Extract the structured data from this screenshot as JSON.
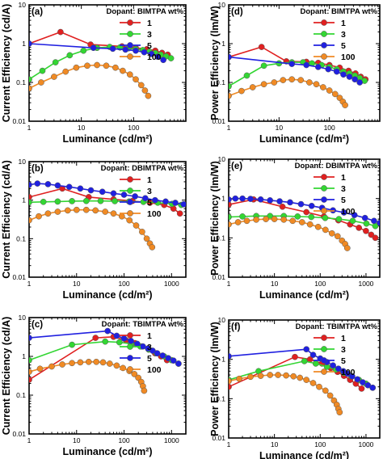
{
  "chart_data": [
    {
      "type": "line",
      "panel": "(a)",
      "legend_title": "Dopant: BIMTPA wt%",
      "xlabel": "Luminance (cd/m²)",
      "ylabel": "Current Efficiency (cd/A)",
      "x_scale": "log",
      "y_scale": "log",
      "xlim": [
        1,
        1000
      ],
      "ylim": [
        0.01,
        10
      ],
      "x_ticks": [
        "1",
        "10",
        "100"
      ],
      "y_ticks": [
        "0.01",
        "0.1",
        "1",
        "10"
      ],
      "legend_position": "top-right",
      "series": [
        {
          "name": "1",
          "color": "#e02020",
          "x": [
            1,
            4,
            15,
            60,
            110,
            180,
            260,
            350,
            450
          ],
          "y": [
            1.0,
            2.0,
            0.95,
            0.85,
            0.78,
            0.72,
            0.66,
            0.58,
            0.52
          ]
        },
        {
          "name": "3",
          "color": "#33d633",
          "x": [
            1,
            1.8,
            3.2,
            6,
            11,
            20,
            35,
            55,
            80,
            110,
            150,
            200,
            260,
            330,
            420,
            520
          ],
          "y": [
            0.12,
            0.2,
            0.33,
            0.5,
            0.66,
            0.78,
            0.82,
            0.8,
            0.76,
            0.72,
            0.68,
            0.62,
            0.57,
            0.52,
            0.47,
            0.42
          ]
        },
        {
          "name": "5",
          "color": "#2020e0",
          "x": [
            1,
            17,
            40,
            70,
            110,
            160,
            220,
            290,
            370
          ],
          "y": [
            1.0,
            0.78,
            0.74,
            0.7,
            0.66,
            0.6,
            0.54,
            0.46,
            0.38
          ]
        },
        {
          "name": "100",
          "color": "#f08a24",
          "x": [
            1,
            1.7,
            3,
            5,
            8,
            13,
            20,
            30,
            45,
            62,
            85,
            110,
            140,
            165,
            190
          ],
          "y": [
            0.07,
            0.1,
            0.14,
            0.19,
            0.24,
            0.27,
            0.28,
            0.27,
            0.24,
            0.2,
            0.16,
            0.12,
            0.085,
            0.062,
            0.045
          ]
        }
      ]
    },
    {
      "type": "line",
      "panel": "(b)",
      "legend_title": "Dopant: DBIMTPA wt%",
      "xlabel": "Luminance (cd/m²)",
      "ylabel": "Current Efficiency (cd/A)",
      "x_scale": "log",
      "y_scale": "log",
      "xlim": [
        1,
        2000
      ],
      "ylim": [
        0.01,
        10
      ],
      "x_ticks": [
        "1",
        "10",
        "100",
        "1000"
      ],
      "y_ticks": [
        "0.01",
        "0.1",
        "1",
        "10"
      ],
      "legend_position": "top-right",
      "series": [
        {
          "name": "1",
          "color": "#e02020",
          "x": [
            1,
            5,
            18,
            60,
            150,
            350,
            700,
            1100,
            1500
          ],
          "y": [
            1.2,
            2.0,
            1.2,
            1.05,
            0.95,
            0.85,
            0.75,
            0.6,
            0.45
          ]
        },
        {
          "name": "3",
          "color": "#33d633",
          "x": [
            1,
            2,
            4,
            8,
            16,
            32,
            64,
            128,
            256,
            512,
            1024,
            1600
          ],
          "y": [
            0.88,
            0.9,
            0.92,
            0.94,
            0.95,
            0.95,
            0.94,
            0.92,
            0.9,
            0.86,
            0.8,
            0.75
          ]
        },
        {
          "name": "5",
          "color": "#2020e0",
          "x": [
            1,
            1.5,
            2.5,
            4,
            7,
            12,
            20,
            35,
            60,
            100,
            170,
            280,
            450,
            750,
            1200,
            1800
          ],
          "y": [
            2.5,
            2.7,
            2.6,
            2.4,
            2.2,
            2.0,
            1.8,
            1.65,
            1.5,
            1.38,
            1.25,
            1.12,
            1.0,
            0.92,
            0.85,
            0.78
          ]
        },
        {
          "name": "100",
          "color": "#f08a24",
          "x": [
            1,
            1.6,
            2.5,
            4,
            6.5,
            10,
            16,
            25,
            40,
            60,
            90,
            130,
            180,
            240,
            300,
            350,
            390
          ],
          "y": [
            0.3,
            0.38,
            0.45,
            0.5,
            0.54,
            0.56,
            0.56,
            0.54,
            0.5,
            0.45,
            0.38,
            0.3,
            0.22,
            0.15,
            0.1,
            0.075,
            0.06
          ]
        }
      ]
    },
    {
      "type": "line",
      "panel": "(c)",
      "legend_title": "Dopant: TBIMTPA wt%",
      "xlabel": "Luminance (cd/m²)",
      "ylabel": "Current Efficiency (cd/A)",
      "x_scale": "log",
      "y_scale": "log",
      "xlim": [
        1,
        2000
      ],
      "ylim": [
        0.01,
        10
      ],
      "x_ticks": [
        "1",
        "10",
        "100",
        "1000"
      ],
      "y_ticks": [
        "0.01",
        "0.1",
        "1",
        "10"
      ],
      "legend_position": "top-right",
      "series": [
        {
          "name": "1",
          "color": "#e02020",
          "x": [
            1,
            25,
            60,
            110,
            170,
            240,
            330,
            450,
            600,
            800
          ],
          "y": [
            0.25,
            3.0,
            3.2,
            2.6,
            2.2,
            1.8,
            1.5,
            1.2,
            1.0,
            0.8
          ]
        },
        {
          "name": "3",
          "color": "#33d633",
          "x": [
            1,
            8,
            40,
            80,
            140,
            220,
            330,
            480,
            700,
            1000,
            1400
          ],
          "y": [
            0.8,
            2.0,
            2.4,
            2.3,
            2.1,
            1.8,
            1.5,
            1.2,
            1.0,
            0.8,
            0.65
          ]
        },
        {
          "name": "5",
          "color": "#2020e0",
          "x": [
            1,
            45,
            70,
            100,
            140,
            190,
            250,
            320,
            400,
            500,
            650,
            850,
            1100,
            1400
          ],
          "y": [
            3.0,
            4.5,
            3.4,
            2.9,
            2.5,
            2.1,
            1.8,
            1.6,
            1.4,
            1.2,
            1.05,
            0.9,
            0.78,
            0.65
          ]
        },
        {
          "name": "100",
          "color": "#f08a24",
          "x": [
            1,
            1.7,
            3,
            5,
            8,
            12,
            18,
            26,
            36,
            50,
            70,
            95,
            130,
            165,
            200,
            230,
            250,
            265
          ],
          "y": [
            0.4,
            0.48,
            0.55,
            0.62,
            0.67,
            0.7,
            0.72,
            0.72,
            0.7,
            0.65,
            0.58,
            0.5,
            0.42,
            0.35,
            0.28,
            0.22,
            0.17,
            0.13
          ]
        }
      ]
    },
    {
      "type": "line",
      "panel": "(d)",
      "legend_title": "Dopant: BIMTPA wt%",
      "xlabel": "Luminance (cd/m²)",
      "ylabel": "Power Efficiency (lm/W)",
      "x_scale": "log",
      "y_scale": "log",
      "xlim": [
        1,
        1000
      ],
      "ylim": [
        0.01,
        10
      ],
      "x_ticks": [
        "1",
        "10",
        "100"
      ],
      "y_ticks": [
        "0.01",
        "0.1",
        "1",
        "10"
      ],
      "legend_position": "top-right",
      "series": [
        {
          "name": "1",
          "color": "#e02020",
          "x": [
            1,
            4.5,
            14,
            35,
            60,
            100,
            160,
            240,
            330,
            420,
            520
          ],
          "y": [
            0.45,
            0.82,
            0.35,
            0.34,
            0.32,
            0.28,
            0.24,
            0.2,
            0.17,
            0.14,
            0.12
          ]
        },
        {
          "name": "3",
          "color": "#33d633",
          "x": [
            1,
            2.3,
            5,
            10,
            18,
            30,
            45,
            70,
            100,
            140,
            190,
            250,
            320,
            400,
            500
          ],
          "y": [
            0.08,
            0.15,
            0.27,
            0.31,
            0.33,
            0.33,
            0.31,
            0.28,
            0.25,
            0.22,
            0.19,
            0.17,
            0.15,
            0.13,
            0.11
          ]
        },
        {
          "name": "5",
          "color": "#2020e0",
          "x": [
            1,
            18,
            35,
            60,
            95,
            140,
            190,
            250,
            320,
            400
          ],
          "y": [
            0.45,
            0.3,
            0.28,
            0.25,
            0.22,
            0.19,
            0.16,
            0.14,
            0.12,
            0.1
          ]
        },
        {
          "name": "100",
          "color": "#f08a24",
          "x": [
            1,
            1.8,
            3,
            5,
            8,
            12,
            18,
            27,
            40,
            55,
            75,
            100,
            130,
            160,
            185,
            205
          ],
          "y": [
            0.045,
            0.06,
            0.075,
            0.09,
            0.1,
            0.115,
            0.12,
            0.115,
            0.1,
            0.09,
            0.075,
            0.062,
            0.05,
            0.04,
            0.032,
            0.026
          ]
        }
      ]
    },
    {
      "type": "line",
      "panel": "(e)",
      "legend_title": "Dopant: DBIMTPA wt%",
      "xlabel": "Luminance (cd/m²)",
      "ylabel": "Power Efficiency (lm/W)",
      "x_scale": "log",
      "y_scale": "log",
      "xlim": [
        1,
        2000
      ],
      "ylim": [
        0.01,
        10
      ],
      "x_ticks": [
        "1",
        "10",
        "100",
        "1000"
      ],
      "y_ticks": [
        "0.01",
        "0.1",
        "1",
        "10"
      ],
      "legend_position": "top-right",
      "series": [
        {
          "name": "1",
          "color": "#e02020",
          "x": [
            1,
            3.5,
            15,
            50,
            120,
            250,
            450,
            700,
            1000,
            1300,
            1600
          ],
          "y": [
            0.7,
            0.95,
            0.62,
            0.45,
            0.35,
            0.28,
            0.22,
            0.18,
            0.15,
            0.12,
            0.1
          ]
        },
        {
          "name": "3",
          "color": "#33d633",
          "x": [
            1,
            2,
            4,
            8,
            16,
            32,
            64,
            128,
            256,
            512,
            1024,
            1600
          ],
          "y": [
            0.34,
            0.35,
            0.36,
            0.36,
            0.36,
            0.35,
            0.34,
            0.32,
            0.3,
            0.27,
            0.23,
            0.2
          ]
        },
        {
          "name": "5",
          "color": "#2020e0",
          "x": [
            1,
            1.4,
            2,
            3,
            5,
            8,
            13,
            22,
            38,
            65,
            110,
            190,
            330,
            560,
            950,
            1500,
            2000
          ],
          "y": [
            0.95,
            1.0,
            1.0,
            0.98,
            0.95,
            0.9,
            0.85,
            0.8,
            0.72,
            0.65,
            0.58,
            0.5,
            0.44,
            0.38,
            0.32,
            0.27,
            0.24
          ]
        },
        {
          "name": "100",
          "color": "#f08a24",
          "x": [
            1,
            1.6,
            2.5,
            4,
            6.5,
            10,
            16,
            25,
            40,
            60,
            90,
            130,
            180,
            240,
            300,
            350,
            390
          ],
          "y": [
            0.22,
            0.25,
            0.27,
            0.29,
            0.3,
            0.3,
            0.29,
            0.27,
            0.25,
            0.22,
            0.19,
            0.16,
            0.13,
            0.11,
            0.085,
            0.07,
            0.055
          ]
        }
      ]
    },
    {
      "type": "line",
      "panel": "(f)",
      "legend_title": "Dopant: TBIMTPA wt%",
      "xlabel": "Luminance (cd/m²)",
      "ylabel": "Power Efficiency (lm/W)",
      "x_scale": "log",
      "y_scale": "log",
      "xlim": [
        1,
        2000
      ],
      "ylim": [
        0.01,
        10
      ],
      "x_ticks": [
        "1",
        "10",
        "100",
        "1000"
      ],
      "y_ticks": [
        "0.01",
        "0.1",
        "1",
        "10"
      ],
      "legend_position": "top-right",
      "series": [
        {
          "name": "1",
          "color": "#e02020",
          "x": [
            1,
            28,
            60,
            110,
            170,
            240,
            330,
            450,
            600,
            800
          ],
          "y": [
            0.2,
            1.15,
            1.0,
            0.78,
            0.6,
            0.48,
            0.38,
            0.3,
            0.24,
            0.18
          ]
        },
        {
          "name": "3",
          "color": "#33d633",
          "x": [
            1,
            4.5,
            45,
            80,
            140,
            220,
            330,
            480,
            700,
            1000,
            1400
          ],
          "y": [
            0.3,
            0.5,
            0.9,
            0.78,
            0.65,
            0.55,
            0.45,
            0.37,
            0.3,
            0.24,
            0.19
          ]
        },
        {
          "name": "5",
          "color": "#2020e0",
          "x": [
            1,
            50,
            70,
            100,
            140,
            190,
            250,
            320,
            400,
            500,
            650,
            850,
            1100,
            1400
          ],
          "y": [
            1.2,
            1.8,
            1.3,
            1.05,
            0.85,
            0.7,
            0.58,
            0.5,
            0.43,
            0.37,
            0.31,
            0.26,
            0.22,
            0.19
          ]
        },
        {
          "name": "100",
          "color": "#f08a24",
          "x": [
            1,
            1.7,
            3,
            5,
            8,
            12,
            18,
            26,
            36,
            50,
            70,
            95,
            130,
            165,
            200,
            230,
            250,
            265
          ],
          "y": [
            0.28,
            0.32,
            0.36,
            0.38,
            0.4,
            0.4,
            0.39,
            0.37,
            0.34,
            0.3,
            0.25,
            0.2,
            0.16,
            0.12,
            0.09,
            0.07,
            0.055,
            0.045
          ]
        }
      ]
    }
  ]
}
